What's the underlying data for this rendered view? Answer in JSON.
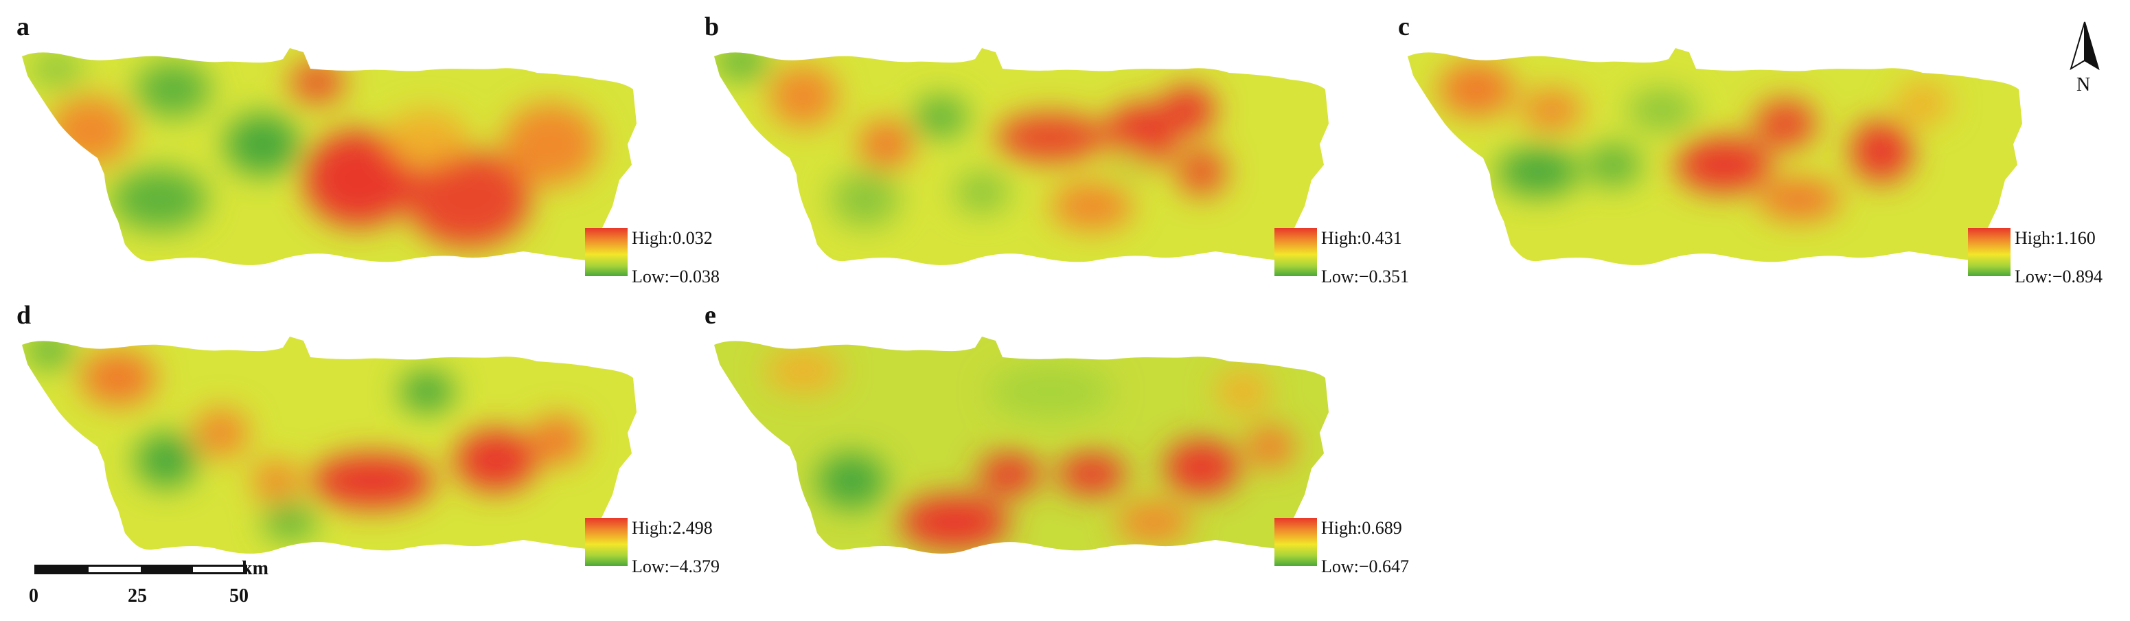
{
  "panels": [
    {
      "label": "a",
      "legend": {
        "high": "High:0.032",
        "low": "Low:−0.038"
      }
    },
    {
      "label": "b",
      "legend": {
        "high": "High:0.431",
        "low": "Low:−0.351"
      }
    },
    {
      "label": "c",
      "legend": {
        "high": "High:1.160",
        "low": "Low:−0.894"
      }
    },
    {
      "label": "d",
      "legend": {
        "high": "High:2.498",
        "low": "Low:−4.379"
      }
    },
    {
      "label": "e",
      "legend": {
        "high": "High:0.689",
        "low": "Low:−0.647"
      }
    }
  ],
  "scale": {
    "unit": "km",
    "ticks": [
      "0",
      "25",
      "50"
    ]
  },
  "north_arrow": {
    "letter": "N"
  },
  "colors": {
    "high": "#e8372a",
    "mid": "#f2e62a",
    "low": "#4aa83a"
  }
}
